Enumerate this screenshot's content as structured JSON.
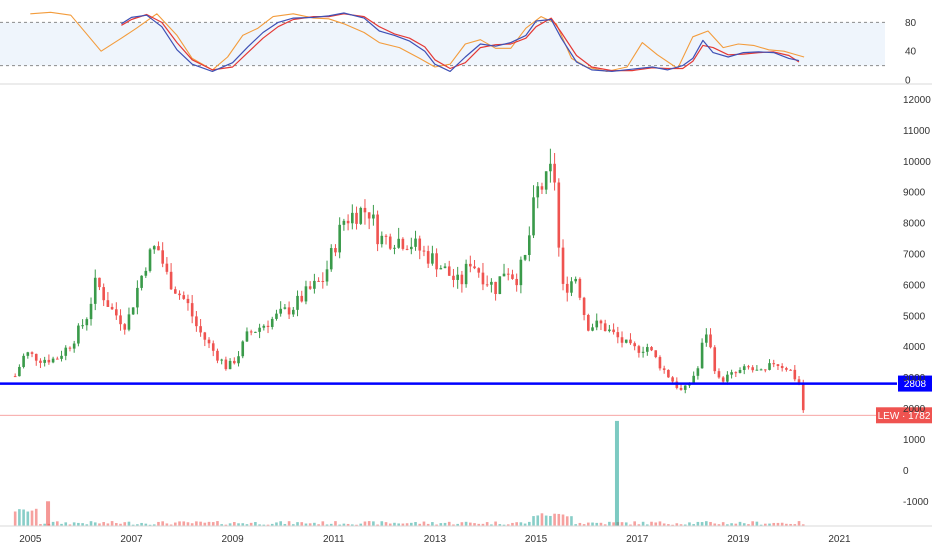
{
  "chart_data": {
    "type": "candlestick",
    "interval": "monthly",
    "colors": {
      "up": "#26a69a",
      "up_candle": "#3a9a4a",
      "down": "#ef5350",
      "stoch_k": "#3f51b5",
      "stoch_d": "#e53935",
      "stoch_slow": "#f39c3c",
      "support_line": "#0000ff",
      "last_line": "#ef5350"
    },
    "price_axis": {
      "range": [
        -1800,
        12500
      ],
      "ticks": [
        12000,
        11000,
        10000,
        9000,
        8000,
        7000,
        6000,
        5000,
        4000,
        3000,
        2000,
        1000,
        0,
        -1000
      ]
    },
    "x_axis": {
      "range": [
        2004.4,
        2021.9
      ],
      "ticks": [
        2005,
        2007,
        2009,
        2011,
        2013,
        2015,
        2017,
        2019,
        2021
      ]
    },
    "price_points": [
      [
        2004.7,
        3050
      ],
      [
        2004.9,
        3800
      ],
      [
        2005.2,
        3600
      ],
      [
        2005.5,
        3600
      ],
      [
        2005.8,
        4100
      ],
      [
        2006.1,
        4900
      ],
      [
        2006.3,
        6100
      ],
      [
        2006.6,
        5200
      ],
      [
        2006.9,
        4700
      ],
      [
        2007.1,
        5800
      ],
      [
        2007.3,
        6800
      ],
      [
        2007.5,
        7300
      ],
      [
        2007.7,
        6300
      ],
      [
        2007.9,
        5800
      ],
      [
        2008.1,
        5400
      ],
      [
        2008.3,
        4600
      ],
      [
        2008.6,
        3900
      ],
      [
        2008.9,
        3300
      ],
      [
        2009.1,
        3700
      ],
      [
        2009.3,
        4400
      ],
      [
        2009.6,
        4700
      ],
      [
        2009.9,
        5000
      ],
      [
        2010.2,
        5300
      ],
      [
        2010.5,
        5800
      ],
      [
        2010.8,
        6200
      ],
      [
        2011.0,
        7200
      ],
      [
        2011.2,
        8100
      ],
      [
        2011.5,
        8400
      ],
      [
        2011.7,
        8400
      ],
      [
        2011.9,
        7500
      ],
      [
        2012.2,
        7500
      ],
      [
        2012.5,
        7400
      ],
      [
        2012.8,
        7000
      ],
      [
        2013.0,
        6800
      ],
      [
        2013.3,
        6300
      ],
      [
        2013.5,
        6000
      ],
      [
        2013.7,
        6800
      ],
      [
        2014.0,
        6200
      ],
      [
        2014.2,
        5900
      ],
      [
        2014.4,
        6600
      ],
      [
        2014.6,
        6200
      ],
      [
        2014.8,
        6900
      ],
      [
        2015.0,
        9000
      ],
      [
        2015.2,
        9300
      ],
      [
        2015.35,
        9900
      ],
      [
        2015.5,
        5800
      ],
      [
        2015.8,
        6300
      ],
      [
        2016.0,
        4700
      ],
      [
        2016.3,
        4700
      ],
      [
        2016.6,
        4300
      ],
      [
        2016.9,
        3900
      ],
      [
        2017.2,
        4000
      ],
      [
        2017.5,
        3300
      ],
      [
        2017.9,
        2500
      ],
      [
        2018.2,
        3300
      ],
      [
        2018.35,
        4600
      ],
      [
        2018.6,
        2900
      ],
      [
        2018.9,
        3100
      ],
      [
        2019.2,
        3300
      ],
      [
        2019.5,
        3100
      ],
      [
        2019.7,
        3500
      ],
      [
        2020.0,
        3300
      ],
      [
        2020.2,
        2800
      ],
      [
        2020.3,
        1782
      ]
    ],
    "volume_spikes": [
      {
        "x": 2005.35,
        "value": -1000,
        "color": "#ef5350"
      },
      {
        "x": 2016.6,
        "value": 1600,
        "color": "#26a69a"
      }
    ],
    "volume_hist_base": -1800,
    "support_level": {
      "value": 2808,
      "label": "2808"
    },
    "last_price": {
      "value": 1782,
      "label": "LEW · 1782"
    },
    "stochastic": {
      "range": [
        0,
        100
      ],
      "ticks": [
        80,
        40,
        0
      ],
      "bands": [
        80,
        20
      ],
      "k_points": [
        [
          2006.8,
          78
        ],
        [
          2007.0,
          87
        ],
        [
          2007.3,
          90
        ],
        [
          2007.6,
          74
        ],
        [
          2007.9,
          42
        ],
        [
          2008.2,
          22
        ],
        [
          2008.6,
          12
        ],
        [
          2009.0,
          24
        ],
        [
          2009.3,
          46
        ],
        [
          2009.6,
          66
        ],
        [
          2009.9,
          80
        ],
        [
          2010.2,
          86
        ],
        [
          2010.6,
          87
        ],
        [
          2010.9,
          89
        ],
        [
          2011.2,
          93
        ],
        [
          2011.6,
          86
        ],
        [
          2011.9,
          68
        ],
        [
          2012.2,
          62
        ],
        [
          2012.5,
          54
        ],
        [
          2012.8,
          40
        ],
        [
          2013.0,
          22
        ],
        [
          2013.3,
          12
        ],
        [
          2013.6,
          32
        ],
        [
          2013.9,
          50
        ],
        [
          2014.2,
          47
        ],
        [
          2014.5,
          52
        ],
        [
          2014.8,
          62
        ],
        [
          2015.0,
          82
        ],
        [
          2015.3,
          84
        ],
        [
          2015.5,
          58
        ],
        [
          2015.8,
          25
        ],
        [
          2016.1,
          14
        ],
        [
          2016.5,
          12
        ],
        [
          2016.9,
          15
        ],
        [
          2017.3,
          18
        ],
        [
          2017.6,
          14
        ],
        [
          2017.9,
          20
        ],
        [
          2018.1,
          30
        ],
        [
          2018.3,
          55
        ],
        [
          2018.5,
          38
        ],
        [
          2018.8,
          32
        ],
        [
          2019.1,
          38
        ],
        [
          2019.4,
          39
        ],
        [
          2019.7,
          38
        ],
        [
          2020.0,
          30
        ],
        [
          2020.2,
          27
        ]
      ],
      "d_points": [
        [
          2006.8,
          76
        ],
        [
          2007.0,
          84
        ],
        [
          2007.3,
          91
        ],
        [
          2007.6,
          80
        ],
        [
          2007.9,
          52
        ],
        [
          2008.2,
          28
        ],
        [
          2008.6,
          14
        ],
        [
          2009.0,
          18
        ],
        [
          2009.3,
          38
        ],
        [
          2009.6,
          58
        ],
        [
          2009.9,
          74
        ],
        [
          2010.2,
          84
        ],
        [
          2010.6,
          88
        ],
        [
          2010.9,
          88
        ],
        [
          2011.2,
          92
        ],
        [
          2011.6,
          88
        ],
        [
          2011.9,
          74
        ],
        [
          2012.2,
          64
        ],
        [
          2012.5,
          58
        ],
        [
          2012.8,
          46
        ],
        [
          2013.0,
          28
        ],
        [
          2013.3,
          16
        ],
        [
          2013.6,
          24
        ],
        [
          2013.9,
          45
        ],
        [
          2014.2,
          49
        ],
        [
          2014.5,
          50
        ],
        [
          2014.8,
          58
        ],
        [
          2015.0,
          74
        ],
        [
          2015.3,
          86
        ],
        [
          2015.5,
          66
        ],
        [
          2015.8,
          34
        ],
        [
          2016.1,
          18
        ],
        [
          2016.5,
          13
        ],
        [
          2016.9,
          13
        ],
        [
          2017.3,
          17
        ],
        [
          2017.6,
          16
        ],
        [
          2017.9,
          16
        ],
        [
          2018.1,
          26
        ],
        [
          2018.3,
          48
        ],
        [
          2018.5,
          45
        ],
        [
          2018.8,
          35
        ],
        [
          2019.1,
          36
        ],
        [
          2019.4,
          38
        ],
        [
          2019.7,
          39
        ],
        [
          2020.0,
          34
        ],
        [
          2020.2,
          25
        ]
      ],
      "slow_points": [
        [
          2005.0,
          92
        ],
        [
          2005.4,
          94
        ],
        [
          2005.8,
          90
        ],
        [
          2006.1,
          65
        ],
        [
          2006.4,
          40
        ],
        [
          2006.8,
          58
        ],
        [
          2007.1,
          72
        ],
        [
          2007.5,
          92
        ],
        [
          2007.9,
          62
        ],
        [
          2008.2,
          30
        ],
        [
          2008.6,
          14
        ],
        [
          2008.9,
          32
        ],
        [
          2009.2,
          62
        ],
        [
          2009.5,
          72
        ],
        [
          2009.8,
          88
        ],
        [
          2010.2,
          92
        ],
        [
          2010.6,
          86
        ],
        [
          2010.9,
          85
        ],
        [
          2011.2,
          78
        ],
        [
          2011.6,
          66
        ],
        [
          2011.9,
          52
        ],
        [
          2012.3,
          45
        ],
        [
          2012.7,
          30
        ],
        [
          2013.0,
          18
        ],
        [
          2013.3,
          22
        ],
        [
          2013.6,
          50
        ],
        [
          2013.9,
          56
        ],
        [
          2014.2,
          44
        ],
        [
          2014.5,
          44
        ],
        [
          2014.8,
          72
        ],
        [
          2015.1,
          88
        ],
        [
          2015.4,
          78
        ],
        [
          2015.7,
          30
        ],
        [
          2016.0,
          18
        ],
        [
          2016.4,
          12
        ],
        [
          2016.8,
          18
        ],
        [
          2017.1,
          52
        ],
        [
          2017.4,
          35
        ],
        [
          2017.8,
          16
        ],
        [
          2018.1,
          60
        ],
        [
          2018.4,
          68
        ],
        [
          2018.7,
          45
        ],
        [
          2019.0,
          50
        ],
        [
          2019.3,
          48
        ],
        [
          2019.6,
          42
        ],
        [
          2019.9,
          40
        ],
        [
          2020.1,
          36
        ],
        [
          2020.3,
          32
        ]
      ]
    }
  }
}
